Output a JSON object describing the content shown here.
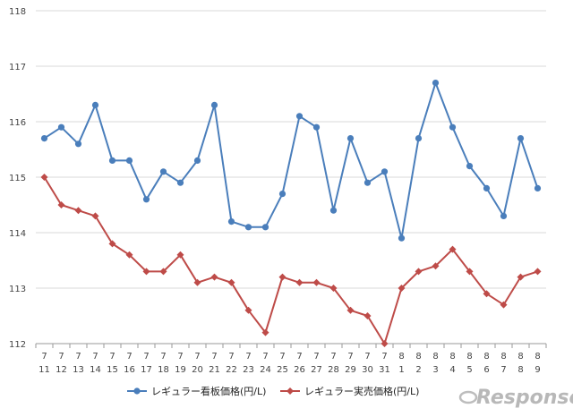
{
  "chart_data": {
    "type": "line",
    "title": "",
    "xlabel": "",
    "ylabel": "",
    "ylim": [
      112,
      118
    ],
    "yticks": [
      112,
      113,
      114,
      115,
      116,
      117,
      118
    ],
    "grid": true,
    "legend_position": "bottom",
    "categories": [
      {
        "month": "7",
        "day": "11"
      },
      {
        "month": "7",
        "day": "12"
      },
      {
        "month": "7",
        "day": "13"
      },
      {
        "month": "7",
        "day": "14"
      },
      {
        "month": "7",
        "day": "15"
      },
      {
        "month": "7",
        "day": "16"
      },
      {
        "month": "7",
        "day": "17"
      },
      {
        "month": "7",
        "day": "18"
      },
      {
        "month": "7",
        "day": "19"
      },
      {
        "month": "7",
        "day": "20"
      },
      {
        "month": "7",
        "day": "21"
      },
      {
        "month": "7",
        "day": "22"
      },
      {
        "month": "7",
        "day": "23"
      },
      {
        "month": "7",
        "day": "24"
      },
      {
        "month": "7",
        "day": "25"
      },
      {
        "month": "7",
        "day": "26"
      },
      {
        "month": "7",
        "day": "27"
      },
      {
        "month": "7",
        "day": "28"
      },
      {
        "month": "7",
        "day": "29"
      },
      {
        "month": "7",
        "day": "30"
      },
      {
        "month": "7",
        "day": "31"
      },
      {
        "month": "8",
        "day": "1"
      },
      {
        "month": "8",
        "day": "2"
      },
      {
        "month": "8",
        "day": "3"
      },
      {
        "month": "8",
        "day": "4"
      },
      {
        "month": "8",
        "day": "5"
      },
      {
        "month": "8",
        "day": "6"
      },
      {
        "month": "8",
        "day": "7"
      },
      {
        "month": "8",
        "day": "8"
      },
      {
        "month": "8",
        "day": "9"
      }
    ],
    "series": [
      {
        "name": "レギュラー看板価格(円/L)",
        "color": "#4A7EBB",
        "marker": "circle",
        "values": [
          115.7,
          115.9,
          115.6,
          116.3,
          115.3,
          115.3,
          114.6,
          115.1,
          114.9,
          115.3,
          116.3,
          114.2,
          114.1,
          114.1,
          114.7,
          116.1,
          115.9,
          114.4,
          115.7,
          114.9,
          115.1,
          113.9,
          115.7,
          116.7,
          115.9,
          115.2,
          114.8,
          114.3,
          115.7,
          114.8
        ]
      },
      {
        "name": "レギュラー実売価格(円/L)",
        "color": "#BE4B48",
        "marker": "diamond",
        "values": [
          115.0,
          114.5,
          114.4,
          114.3,
          113.8,
          113.6,
          113.3,
          113.3,
          113.6,
          113.1,
          113.2,
          113.1,
          112.6,
          112.2,
          113.2,
          113.1,
          113.1,
          113.0,
          112.6,
          112.5,
          112.0,
          113.0,
          113.3,
          113.4,
          113.7,
          113.3,
          112.9,
          112.7,
          113.2,
          113.3
        ]
      }
    ]
  },
  "watermark": {
    "text": "Response."
  }
}
